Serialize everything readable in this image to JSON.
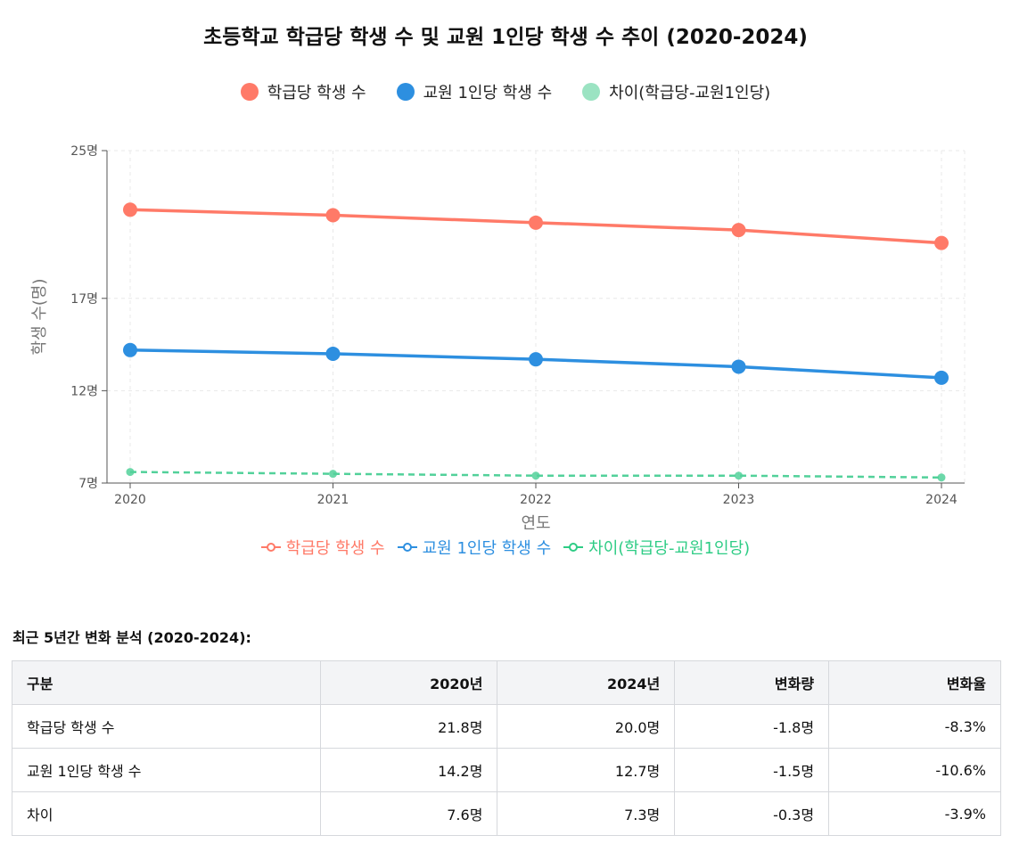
{
  "title": "초등학교 학급당 학생 수 및 교원 1인당 학생 수 추이 (2020-2024)",
  "colors": {
    "class": "#FF7A68",
    "teacher": "#2D8FE0",
    "diff": "#52D19A",
    "axis": "#555555",
    "grid": "#e8e8e8"
  },
  "chart_data": {
    "type": "line",
    "title": "초등학교 학급당 학생 수 및 교원 1인당 학생 수 추이 (2020-2024)",
    "x": [
      "2020",
      "2021",
      "2022",
      "2023",
      "2024"
    ],
    "xlabel": "연도",
    "ylabel": "학생 수(명)",
    "ylim": [
      7,
      25
    ],
    "yticks": [
      7,
      12,
      17,
      25
    ],
    "ytick_labels": [
      "7명",
      "12명",
      "17명",
      "25명"
    ],
    "grid": true,
    "legend": "top and bottom",
    "series": [
      {
        "name": "학급당 학생 수",
        "values": [
          21.8,
          21.5,
          21.1,
          20.7,
          20.0
        ],
        "color": "#FF7A68",
        "style": "solid"
      },
      {
        "name": "교원 1인당 학생 수",
        "values": [
          14.2,
          14.0,
          13.7,
          13.3,
          12.7
        ],
        "color": "#2D8FE0",
        "style": "solid"
      },
      {
        "name": "차이(학급당-교원1인당)",
        "values": [
          7.6,
          7.5,
          7.4,
          7.4,
          7.3
        ],
        "color": "#52D19A",
        "style": "dashed"
      }
    ]
  },
  "legend_bottom_colors": [
    "#FF7A68",
    "#2D8FE0",
    "#2ECC85"
  ],
  "analysis": {
    "title": "최근 5년간 변화 분석 (2020-2024):",
    "headers": [
      "구분",
      "2020년",
      "2024년",
      "변화량",
      "변화율"
    ],
    "rows": [
      [
        "학급당 학생 수",
        "21.8명",
        "20.0명",
        "-1.8명",
        "-8.3%"
      ],
      [
        "교원 1인당 학생 수",
        "14.2명",
        "12.7명",
        "-1.5명",
        "-10.6%"
      ],
      [
        "차이",
        "7.6명",
        "7.3명",
        "-0.3명",
        "-3.9%"
      ]
    ]
  }
}
